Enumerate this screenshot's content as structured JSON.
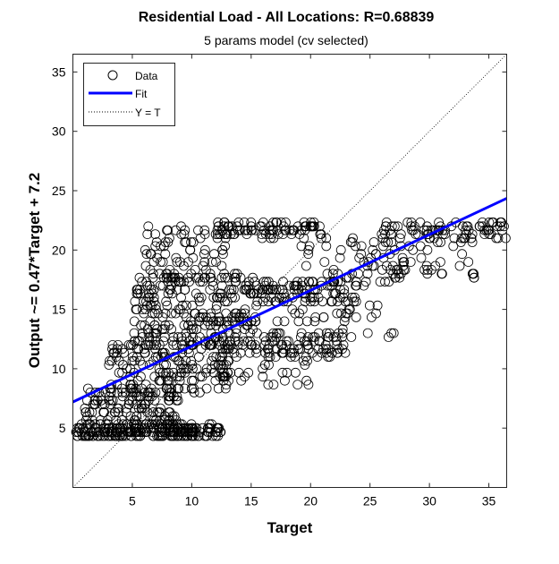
{
  "chart_data": {
    "type": "scatter",
    "title": "Residential Load - All Locations: R=0.68839",
    "subtitle": "5 params model (cv selected)",
    "xlabel": "Target",
    "ylabel": "Output ~= 0.47*Target + 7.2",
    "xlim": [
      0,
      36.5
    ],
    "ylim": [
      0,
      36.5
    ],
    "xticks": [
      5,
      10,
      15,
      20,
      25,
      30,
      35
    ],
    "yticks": [
      5,
      10,
      15,
      20,
      25,
      30,
      35
    ],
    "grid": false,
    "legend_position": "top-left",
    "legend": [
      "Data",
      "Fit",
      "Y = T"
    ],
    "fit": {
      "slope": 0.47,
      "intercept": 7.2
    },
    "colors": {
      "fit": "#0000ff",
      "data": "#000000",
      "identity": "#000000"
    },
    "clusters": [
      {
        "xmin": 0.2,
        "xmax": 12.5,
        "ymin": 4.2,
        "ymax": 5.3,
        "count": 260
      },
      {
        "xmin": 1.0,
        "xmax": 9.0,
        "ymin": 5.3,
        "ymax": 8.5,
        "count": 130
      },
      {
        "xmin": 3.0,
        "xmax": 13.5,
        "ymin": 8.0,
        "ymax": 12.5,
        "count": 170
      },
      {
        "xmin": 5.0,
        "xmax": 15.5,
        "ymin": 12.0,
        "ymax": 18.0,
        "count": 260
      },
      {
        "xmin": 6.0,
        "xmax": 13.0,
        "ymin": 17.5,
        "ymax": 22.0,
        "count": 80
      },
      {
        "xmin": 12.0,
        "xmax": 21.0,
        "ymin": 21.0,
        "ymax": 22.4,
        "count": 90
      },
      {
        "xmin": 15.5,
        "xmax": 24.0,
        "ymin": 15.5,
        "ymax": 17.5,
        "count": 90
      },
      {
        "xmin": 16.0,
        "xmax": 23.0,
        "ymin": 11.0,
        "ymax": 13.0,
        "count": 70
      },
      {
        "xmin": 12.0,
        "xmax": 20.0,
        "ymin": 8.5,
        "ymax": 12.0,
        "count": 50
      },
      {
        "xmin": 19.0,
        "xmax": 28.0,
        "ymin": 17.0,
        "ymax": 21.0,
        "count": 60
      },
      {
        "xmin": 26.0,
        "xmax": 36.5,
        "ymin": 21.0,
        "ymax": 22.4,
        "count": 70
      },
      {
        "xmin": 25.0,
        "xmax": 34.0,
        "ymin": 17.5,
        "ymax": 21.5,
        "count": 50
      },
      {
        "xmin": 17.0,
        "xmax": 27.0,
        "ymin": 12.5,
        "ymax": 16.0,
        "count": 40
      }
    ]
  }
}
